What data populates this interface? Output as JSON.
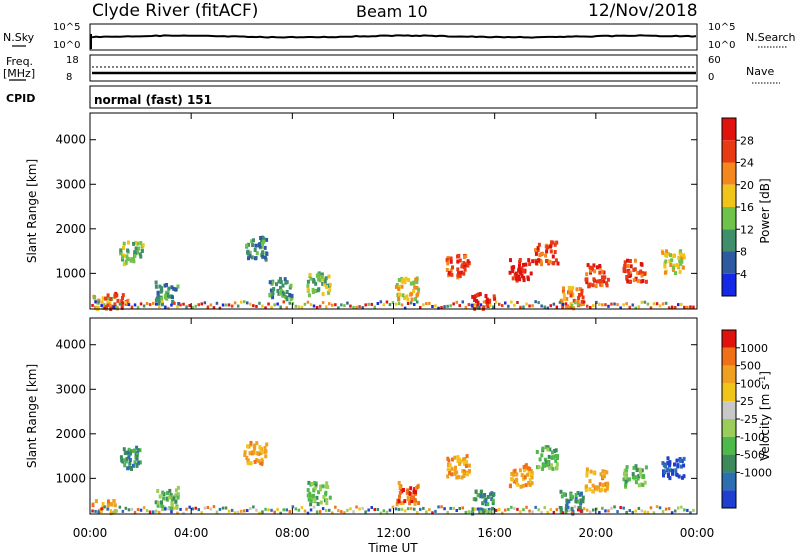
{
  "header": {
    "station": "Clyde River (fitACF)",
    "beam": "Beam 10",
    "date": "12/Nov/2018"
  },
  "param_panels": {
    "nsky_label": "N.Sky",
    "nsky_ticks": [
      "10^5",
      "10^0"
    ],
    "nsearch_label": "N.Search",
    "nsearch_ticks": [
      "10^5",
      "10^0"
    ],
    "freq_label_1": "Freq.",
    "freq_label_2": "[MHz]",
    "freq_ticks": [
      "18",
      "8"
    ],
    "nave_label": "Nave",
    "nave_ticks": [
      "60",
      "0"
    ],
    "cpid_label": "CPID",
    "cpid_value": "normal (fast) 151"
  },
  "chart_data": [
    {
      "type": "heatmap",
      "name": "power",
      "ylabel": "Slant Range [km]",
      "yticks": [
        "1000",
        "2000",
        "3000",
        "4000"
      ],
      "ylim": [
        200,
        4600
      ],
      "colorbar_label": "Power [dB]",
      "colorbar_ticks": [
        "4",
        "8",
        "12",
        "16",
        "20",
        "24",
        "28"
      ],
      "colorbar_colors": [
        "#1428e6",
        "#2d5aa0",
        "#3f8f6b",
        "#6fc24a",
        "#f0c419",
        "#f5871f",
        "#e83a14",
        "#e0120e"
      ],
      "patches": [
        {
          "t": 0.5,
          "r": 300,
          "level": 4
        },
        {
          "t": 1.0,
          "r": 350,
          "level": 6
        },
        {
          "t": 1.6,
          "r": 1500,
          "level": 3
        },
        {
          "t": 3.0,
          "r": 600,
          "level": 2
        },
        {
          "t": 6.5,
          "r": 1600,
          "level": 2
        },
        {
          "t": 7.5,
          "r": 700,
          "level": 2
        },
        {
          "t": 9.0,
          "r": 800,
          "level": 3
        },
        {
          "t": 12.5,
          "r": 700,
          "level": 4
        },
        {
          "t": 14.5,
          "r": 1200,
          "level": 6
        },
        {
          "t": 15.5,
          "r": 350,
          "level": 7
        },
        {
          "t": 17.0,
          "r": 1100,
          "level": 7
        },
        {
          "t": 18.0,
          "r": 1500,
          "level": 6
        },
        {
          "t": 19.0,
          "r": 500,
          "level": 5
        },
        {
          "t": 20.0,
          "r": 1000,
          "level": 6
        },
        {
          "t": 21.5,
          "r": 1100,
          "level": 6
        },
        {
          "t": 23.0,
          "r": 1300,
          "level": 4
        }
      ]
    },
    {
      "type": "heatmap",
      "name": "velocity",
      "ylabel": "Slant Range [km]",
      "yticks": [
        "1000",
        "2000",
        "3000",
        "4000"
      ],
      "ylim": [
        200,
        4600
      ],
      "colorbar_label": "Velocity [m s^-1]",
      "colorbar_ticks": [
        "1000",
        "500",
        "100",
        "25",
        "-25",
        "-100",
        "-500",
        "-1000"
      ],
      "colorbar_colors": [
        "#1e3fd0",
        "#2b6fb0",
        "#3c8a5a",
        "#4fb84a",
        "#9acd5a",
        "#c8c8c8",
        "#f0c419",
        "#f0a020",
        "#f07018",
        "#e0120e"
      ],
      "patches": [
        {
          "t": 0.5,
          "r": 300,
          "level": 7
        },
        {
          "t": 1.6,
          "r": 1500,
          "level": 2
        },
        {
          "t": 3.0,
          "r": 600,
          "level": 3
        },
        {
          "t": 6.5,
          "r": 1600,
          "level": 7
        },
        {
          "t": 9.0,
          "r": 700,
          "level": 3
        },
        {
          "t": 12.5,
          "r": 700,
          "level": 8
        },
        {
          "t": 14.5,
          "r": 1300,
          "level": 7
        },
        {
          "t": 15.5,
          "r": 500,
          "level": 2
        },
        {
          "t": 17.0,
          "r": 1100,
          "level": 7
        },
        {
          "t": 18.0,
          "r": 1500,
          "level": 3
        },
        {
          "t": 19.0,
          "r": 500,
          "level": 2
        },
        {
          "t": 20.0,
          "r": 1000,
          "level": 7
        },
        {
          "t": 21.5,
          "r": 1100,
          "level": 3
        },
        {
          "t": 23.0,
          "r": 1300,
          "level": 0
        }
      ]
    }
  ],
  "xaxis": {
    "label": "Time UT",
    "ticks": [
      "00:00",
      "04:00",
      "08:00",
      "12:00",
      "16:00",
      "20:00",
      "00:00"
    ],
    "range_hours": [
      0,
      24
    ]
  }
}
